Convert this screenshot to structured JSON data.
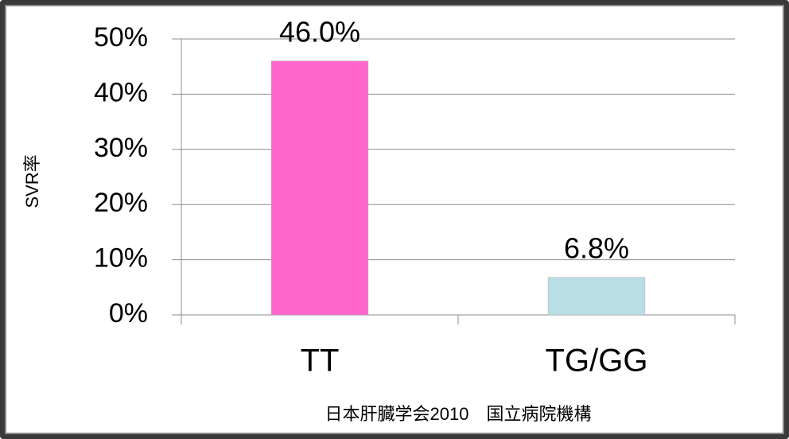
{
  "chart_data": {
    "type": "bar",
    "ylabel": "SVR率",
    "xlabel": "日本肝臓学会2010　国立病院機構",
    "categories": [
      "TT",
      "TG/GG"
    ],
    "values": [
      46.0,
      6.8
    ],
    "value_labels": [
      "46.0%",
      "6.8%"
    ],
    "colors": [
      "#ff66cc",
      "#b9dfe4"
    ],
    "ylim": [
      0,
      50
    ],
    "yticks": [
      {
        "value": 0,
        "label": "0%"
      },
      {
        "value": 10,
        "label": "10%"
      },
      {
        "value": 20,
        "label": "20%"
      },
      {
        "value": 30,
        "label": "30%"
      },
      {
        "value": 40,
        "label": "40%"
      },
      {
        "value": 50,
        "label": "50%"
      }
    ],
    "grid": true
  }
}
